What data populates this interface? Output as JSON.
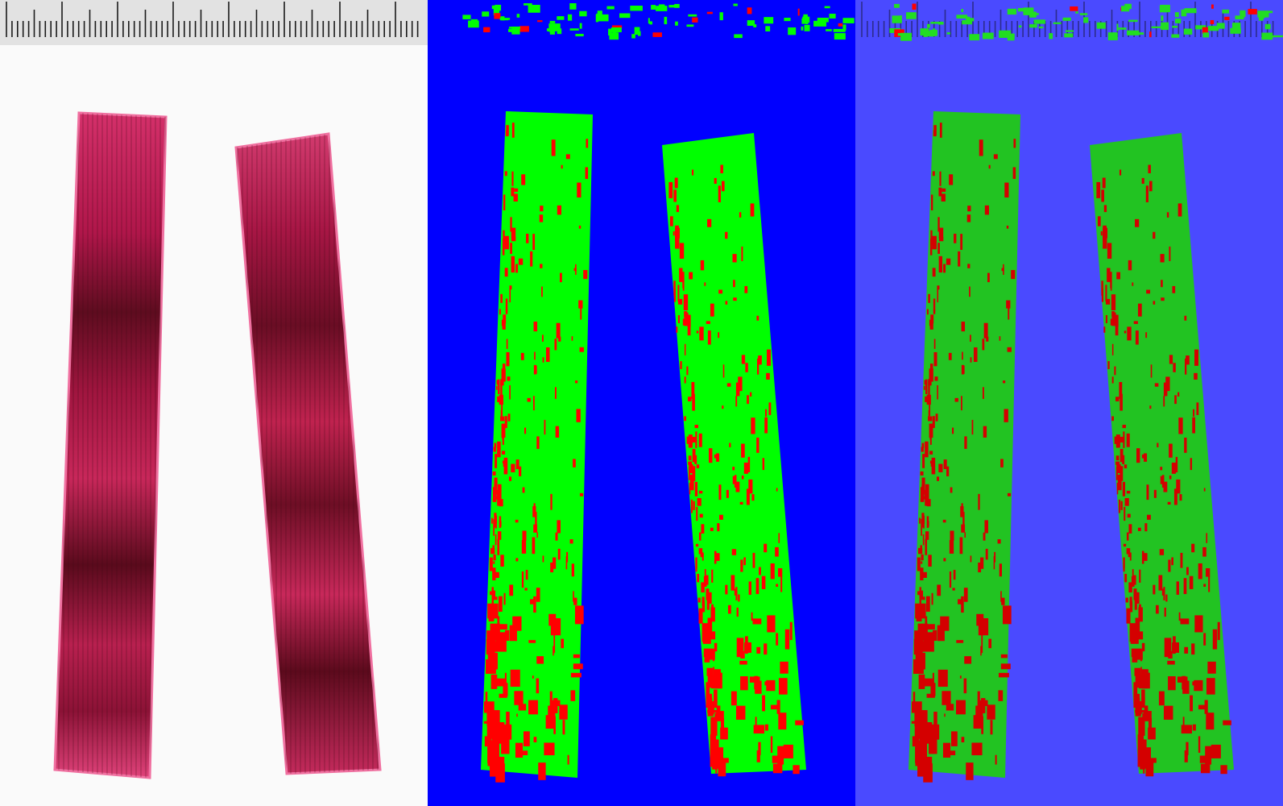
{
  "figure": {
    "panels": [
      {
        "id": "stained-leaf-photo",
        "background": "#fafafa",
        "ruler_background": "#dcdcdc",
        "ruler_tick": "#1a1a1a",
        "leaf_light": "#e0426f",
        "leaf_mid": "#b81748",
        "leaf_dark": "#5a0a1c",
        "leaf_edge": "#f56fa0"
      },
      {
        "id": "segmentation-mask",
        "background": "#0000ff",
        "healthy_color": "#00ff00",
        "lesion_color": "#ff0000"
      },
      {
        "id": "segmentation-overlay",
        "background": "#4a4aff",
        "healthy_color": "#22cc22",
        "lesion_color": "#dd0000",
        "ruler_tick": "#3a3a8a"
      }
    ],
    "leaf_count": 2,
    "classes": [
      "background",
      "healthy-tissue",
      "lesion"
    ]
  }
}
